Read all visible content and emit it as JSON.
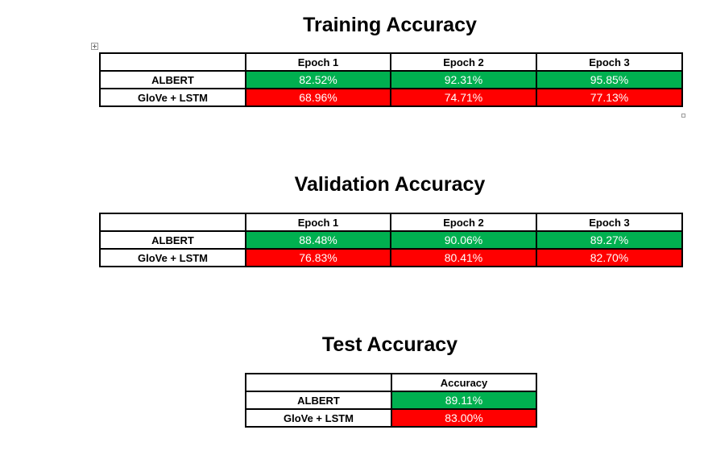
{
  "training": {
    "title": "Training Accuracy",
    "headers": [
      "",
      "Epoch 1",
      "Epoch 2",
      "Epoch 3"
    ],
    "rows": [
      {
        "model": "ALBERT",
        "values": [
          "82.52%",
          "92.31%",
          "95.85%"
        ]
      },
      {
        "model": "GloVe + LSTM",
        "values": [
          "68.96%",
          "74.71%",
          "77.13%"
        ]
      }
    ]
  },
  "validation": {
    "title": "Validation Accuracy",
    "headers": [
      "",
      "Epoch 1",
      "Epoch 2",
      "Epoch 3"
    ],
    "rows": [
      {
        "model": "ALBERT",
        "values": [
          "88.48%",
          "90.06%",
          "89.27%"
        ]
      },
      {
        "model": "GloVe + LSTM",
        "values": [
          "76.83%",
          "80.41%",
          "82.70%"
        ]
      }
    ]
  },
  "test": {
    "title": "Test Accuracy",
    "headers": [
      "",
      "Accuracy"
    ],
    "rows": [
      {
        "model": "ALBERT",
        "values": [
          "89.11%"
        ]
      },
      {
        "model": "GloVe + LSTM",
        "values": [
          "83.00%"
        ]
      }
    ]
  },
  "colors": {
    "better": "#00b050",
    "worse": "#ff0000"
  },
  "icons": {
    "table_move_handle": "move-handle-icon",
    "table_resize_handle": "resize-handle-icon"
  }
}
